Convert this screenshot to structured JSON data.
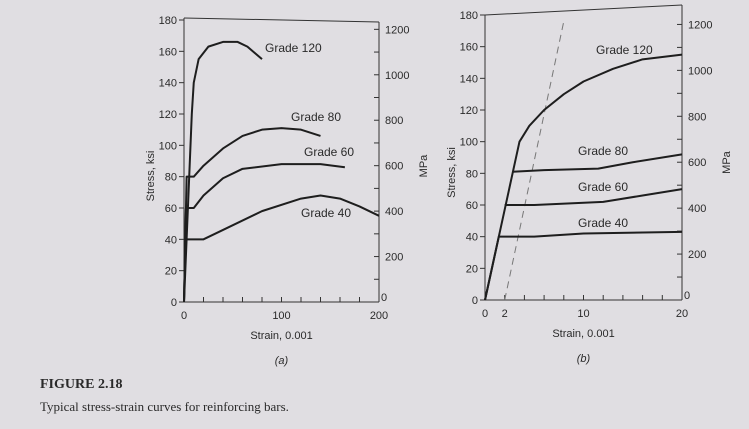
{
  "chart_data": [
    {
      "type": "line",
      "panel_label": "(a)",
      "xlabel": "Strain, 0.001",
      "ylabel": "Stress, ksi",
      "y2label": "MPa",
      "xlim": [
        0,
        200
      ],
      "ylim": [
        0,
        180
      ],
      "y2lim": [
        0,
        1241
      ],
      "xticks": [
        0,
        100,
        200
      ],
      "yticks": [
        0,
        20,
        40,
        60,
        80,
        100,
        120,
        140,
        160,
        180
      ],
      "y2ticks": [
        0,
        200,
        400,
        600,
        800,
        1000,
        1200
      ],
      "grid": false,
      "series": [
        {
          "name": "Grade 120",
          "x": [
            0,
            8,
            10,
            15,
            25,
            40,
            55,
            65,
            80
          ],
          "y": [
            0,
            120,
            140,
            155,
            163,
            166,
            166,
            163,
            155
          ]
        },
        {
          "name": "Grade 80",
          "x": [
            0,
            2.7,
            10,
            20,
            40,
            60,
            80,
            100,
            120,
            140
          ],
          "y": [
            0,
            80,
            80,
            87,
            98,
            106,
            110,
            111,
            110,
            106
          ]
        },
        {
          "name": "Grade 60",
          "x": [
            0,
            2,
            10,
            20,
            40,
            60,
            100,
            140,
            165
          ],
          "y": [
            0,
            60,
            60,
            68,
            79,
            85,
            88,
            88,
            86
          ]
        },
        {
          "name": "Grade 40",
          "x": [
            0,
            1.4,
            20,
            40,
            80,
            120,
            140,
            160,
            180,
            200
          ],
          "y": [
            0,
            40,
            40,
            46,
            58,
            66,
            68,
            66,
            61,
            55
          ]
        }
      ]
    },
    {
      "type": "line",
      "panel_label": "(b)",
      "xlabel": "Strain, 0.001",
      "ylabel": "Stress, ksi",
      "y2label": "MPa",
      "xlim": [
        0,
        20
      ],
      "ylim": [
        0,
        180
      ],
      "y2lim": [
        0,
        1241
      ],
      "xticks": [
        0,
        2,
        10,
        20
      ],
      "yticks": [
        0,
        20,
        40,
        60,
        80,
        100,
        120,
        140,
        160,
        180
      ],
      "y2ticks": [
        0,
        200,
        400,
        600,
        800,
        1000,
        1200
      ],
      "grid": false,
      "series": [
        {
          "name": "Grade 120",
          "x": [
            0,
            1.4,
            2.8,
            3.5,
            4.5,
            6,
            8,
            10,
            13,
            16,
            20
          ],
          "y": [
            0,
            40,
            80,
            100,
            110,
            120,
            130,
            138,
            146,
            152,
            155
          ]
        },
        {
          "name": "Grade 80",
          "x": [
            2.8,
            6,
            11.5,
            15,
            20
          ],
          "y": [
            81,
            82,
            83,
            87,
            92
          ]
        },
        {
          "name": "Grade 60",
          "x": [
            2,
            5,
            12,
            16,
            20
          ],
          "y": [
            60,
            60,
            62,
            66,
            70
          ]
        },
        {
          "name": "Grade 40",
          "x": [
            0,
            1.4,
            5,
            10,
            20
          ],
          "y": [
            0,
            40,
            40,
            42,
            43
          ]
        }
      ],
      "offset_line": {
        "style": "dashed",
        "x": [
          2,
          8
        ],
        "y": [
          0,
          176
        ]
      }
    }
  ],
  "caption": {
    "title": "FIGURE 2.18",
    "text": "Typical stress-strain curves for reinforcing bars."
  }
}
